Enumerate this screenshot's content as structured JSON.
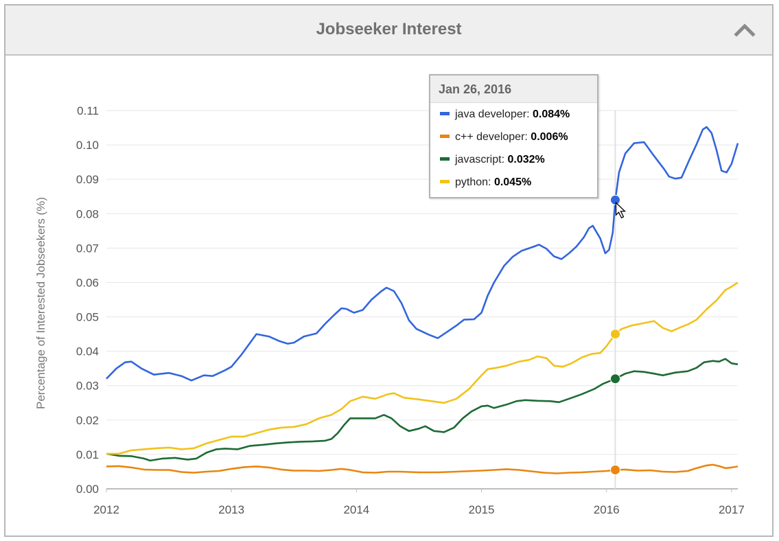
{
  "header": {
    "title": "Jobseeker Interest"
  },
  "tooltip": {
    "date": "Jan 26, 2016",
    "rows": [
      {
        "label": "java developer:",
        "value": "0.084%",
        "color": "#3366dd"
      },
      {
        "label": "c++ developer:",
        "value": "0.006%",
        "color": "#e8860f"
      },
      {
        "label": "javascript:",
        "value": "0.032%",
        "color": "#1d6b35"
      },
      {
        "label": "python:",
        "value": "0.045%",
        "color": "#f1c21b"
      }
    ]
  },
  "chart_data": {
    "type": "line",
    "ylabel": "Percentage of Interested Jobseekers (%)",
    "xlabel": "",
    "ylim": [
      0,
      0.11
    ],
    "xlim": [
      2012,
      2017.05
    ],
    "x_ticks": [
      "2012",
      "2013",
      "2014",
      "2015",
      "2016",
      "2017"
    ],
    "y_ticks": [
      "0.00",
      "0.01",
      "0.02",
      "0.03",
      "0.04",
      "0.05",
      "0.06",
      "0.07",
      "0.08",
      "0.09",
      "0.10",
      "0.11"
    ],
    "grid": true,
    "highlight_x": 2016.07,
    "series": [
      {
        "name": "java developer",
        "color": "#3366dd",
        "points": [
          [
            2012.0,
            0.032
          ],
          [
            2012.08,
            0.035
          ],
          [
            2012.15,
            0.0368
          ],
          [
            2012.2,
            0.037
          ],
          [
            2012.28,
            0.035
          ],
          [
            2012.38,
            0.0332
          ],
          [
            2012.5,
            0.0337
          ],
          [
            2012.6,
            0.0328
          ],
          [
            2012.68,
            0.0315
          ],
          [
            2012.78,
            0.033
          ],
          [
            2012.85,
            0.0328
          ],
          [
            2012.95,
            0.0345
          ],
          [
            2013.0,
            0.0355
          ],
          [
            2013.08,
            0.039
          ],
          [
            2013.15,
            0.0425
          ],
          [
            2013.2,
            0.045
          ],
          [
            2013.3,
            0.0443
          ],
          [
            2013.38,
            0.043
          ],
          [
            2013.45,
            0.0422
          ],
          [
            2013.5,
            0.0425
          ],
          [
            2013.58,
            0.0443
          ],
          [
            2013.68,
            0.0452
          ],
          [
            2013.75,
            0.048
          ],
          [
            2013.82,
            0.0505
          ],
          [
            2013.88,
            0.0525
          ],
          [
            2013.92,
            0.0523
          ],
          [
            2013.98,
            0.0512
          ],
          [
            2014.05,
            0.052
          ],
          [
            2014.12,
            0.055
          ],
          [
            2014.2,
            0.0575
          ],
          [
            2014.24,
            0.0585
          ],
          [
            2014.3,
            0.0575
          ],
          [
            2014.36,
            0.054
          ],
          [
            2014.42,
            0.049
          ],
          [
            2014.48,
            0.0465
          ],
          [
            2014.58,
            0.0448
          ],
          [
            2014.65,
            0.0438
          ],
          [
            2014.72,
            0.0455
          ],
          [
            2014.8,
            0.0475
          ],
          [
            2014.86,
            0.0492
          ],
          [
            2014.94,
            0.0493
          ],
          [
            2015.0,
            0.0512
          ],
          [
            2015.05,
            0.0562
          ],
          [
            2015.1,
            0.06
          ],
          [
            2015.18,
            0.0648
          ],
          [
            2015.25,
            0.0675
          ],
          [
            2015.32,
            0.0692
          ],
          [
            2015.4,
            0.0702
          ],
          [
            2015.46,
            0.071
          ],
          [
            2015.52,
            0.0698
          ],
          [
            2015.58,
            0.0676
          ],
          [
            2015.64,
            0.0668
          ],
          [
            2015.7,
            0.0685
          ],
          [
            2015.76,
            0.0705
          ],
          [
            2015.82,
            0.0732
          ],
          [
            2015.86,
            0.0758
          ],
          [
            2015.89,
            0.0765
          ],
          [
            2015.95,
            0.0728
          ],
          [
            2015.99,
            0.0685
          ],
          [
            2016.02,
            0.0695
          ],
          [
            2016.05,
            0.0745
          ],
          [
            2016.07,
            0.084
          ],
          [
            2016.1,
            0.092
          ],
          [
            2016.15,
            0.0975
          ],
          [
            2016.22,
            0.1005
          ],
          [
            2016.3,
            0.1008
          ],
          [
            2016.38,
            0.0968
          ],
          [
            2016.46,
            0.093
          ],
          [
            2016.5,
            0.0908
          ],
          [
            2016.55,
            0.0902
          ],
          [
            2016.6,
            0.0905
          ],
          [
            2016.66,
            0.0955
          ],
          [
            2016.72,
            0.1002
          ],
          [
            2016.77,
            0.1045
          ],
          [
            2016.8,
            0.1052
          ],
          [
            2016.84,
            0.1035
          ],
          [
            2016.88,
            0.0985
          ],
          [
            2016.92,
            0.0925
          ],
          [
            2016.96,
            0.092
          ],
          [
            2017.0,
            0.0945
          ],
          [
            2017.05,
            0.1005
          ]
        ]
      },
      {
        "name": "c++ developer",
        "color": "#e8860f",
        "points": [
          [
            2012.0,
            0.0065
          ],
          [
            2012.1,
            0.0066
          ],
          [
            2012.2,
            0.0062
          ],
          [
            2012.3,
            0.0056
          ],
          [
            2012.4,
            0.0055
          ],
          [
            2012.5,
            0.0055
          ],
          [
            2012.6,
            0.0049
          ],
          [
            2012.7,
            0.0047
          ],
          [
            2012.8,
            0.005
          ],
          [
            2012.9,
            0.0052
          ],
          [
            2013.0,
            0.0058
          ],
          [
            2013.1,
            0.0063
          ],
          [
            2013.2,
            0.0065
          ],
          [
            2013.3,
            0.0062
          ],
          [
            2013.4,
            0.0056
          ],
          [
            2013.5,
            0.0053
          ],
          [
            2013.6,
            0.0053
          ],
          [
            2013.7,
            0.0052
          ],
          [
            2013.8,
            0.0055
          ],
          [
            2013.88,
            0.0058
          ],
          [
            2013.95,
            0.0055
          ],
          [
            2014.05,
            0.0048
          ],
          [
            2014.15,
            0.0047
          ],
          [
            2014.25,
            0.005
          ],
          [
            2014.35,
            0.005
          ],
          [
            2014.5,
            0.0048
          ],
          [
            2014.65,
            0.0048
          ],
          [
            2014.8,
            0.005
          ],
          [
            2015.0,
            0.0053
          ],
          [
            2015.1,
            0.0055
          ],
          [
            2015.2,
            0.0057
          ],
          [
            2015.3,
            0.0055
          ],
          [
            2015.4,
            0.0051
          ],
          [
            2015.5,
            0.0047
          ],
          [
            2015.6,
            0.0045
          ],
          [
            2015.7,
            0.0047
          ],
          [
            2015.8,
            0.0048
          ],
          [
            2015.9,
            0.005
          ],
          [
            2016.0,
            0.0052
          ],
          [
            2016.07,
            0.0055
          ],
          [
            2016.15,
            0.0056
          ],
          [
            2016.25,
            0.0053
          ],
          [
            2016.35,
            0.0054
          ],
          [
            2016.45,
            0.005
          ],
          [
            2016.55,
            0.0049
          ],
          [
            2016.65,
            0.0052
          ],
          [
            2016.72,
            0.006
          ],
          [
            2016.8,
            0.0068
          ],
          [
            2016.85,
            0.007
          ],
          [
            2016.9,
            0.0066
          ],
          [
            2016.95,
            0.006
          ],
          [
            2017.0,
            0.0062
          ],
          [
            2017.05,
            0.0065
          ]
        ]
      },
      {
        "name": "javascript",
        "color": "#1d6b35",
        "points": [
          [
            2012.0,
            0.0102
          ],
          [
            2012.1,
            0.0096
          ],
          [
            2012.2,
            0.0095
          ],
          [
            2012.3,
            0.0088
          ],
          [
            2012.35,
            0.0082
          ],
          [
            2012.45,
            0.0088
          ],
          [
            2012.55,
            0.009
          ],
          [
            2012.65,
            0.0085
          ],
          [
            2012.72,
            0.0088
          ],
          [
            2012.8,
            0.0105
          ],
          [
            2012.88,
            0.0115
          ],
          [
            2012.95,
            0.0117
          ],
          [
            2013.05,
            0.0115
          ],
          [
            2013.15,
            0.0125
          ],
          [
            2013.25,
            0.0128
          ],
          [
            2013.35,
            0.0132
          ],
          [
            2013.45,
            0.0135
          ],
          [
            2013.55,
            0.0137
          ],
          [
            2013.65,
            0.0138
          ],
          [
            2013.75,
            0.014
          ],
          [
            2013.8,
            0.0145
          ],
          [
            2013.85,
            0.0162
          ],
          [
            2013.9,
            0.0185
          ],
          [
            2013.95,
            0.0205
          ],
          [
            2014.05,
            0.0205
          ],
          [
            2014.15,
            0.0205
          ],
          [
            2014.22,
            0.0215
          ],
          [
            2014.28,
            0.0205
          ],
          [
            2014.35,
            0.0182
          ],
          [
            2014.42,
            0.0168
          ],
          [
            2014.5,
            0.0175
          ],
          [
            2014.55,
            0.0182
          ],
          [
            2014.62,
            0.0168
          ],
          [
            2014.7,
            0.0165
          ],
          [
            2014.78,
            0.0178
          ],
          [
            2014.85,
            0.0205
          ],
          [
            2014.92,
            0.0225
          ],
          [
            2015.0,
            0.024
          ],
          [
            2015.05,
            0.0242
          ],
          [
            2015.1,
            0.0235
          ],
          [
            2015.2,
            0.0245
          ],
          [
            2015.28,
            0.0255
          ],
          [
            2015.35,
            0.0258
          ],
          [
            2015.45,
            0.0256
          ],
          [
            2015.55,
            0.0255
          ],
          [
            2015.62,
            0.0252
          ],
          [
            2015.7,
            0.0262
          ],
          [
            2015.8,
            0.0275
          ],
          [
            2015.9,
            0.029
          ],
          [
            2015.97,
            0.0305
          ],
          [
            2016.07,
            0.032
          ],
          [
            2016.15,
            0.0335
          ],
          [
            2016.22,
            0.0342
          ],
          [
            2016.3,
            0.034
          ],
          [
            2016.38,
            0.0335
          ],
          [
            2016.45,
            0.033
          ],
          [
            2016.55,
            0.0338
          ],
          [
            2016.65,
            0.0342
          ],
          [
            2016.72,
            0.0352
          ],
          [
            2016.78,
            0.0368
          ],
          [
            2016.85,
            0.0372
          ],
          [
            2016.9,
            0.037
          ],
          [
            2016.95,
            0.0378
          ],
          [
            2017.0,
            0.0365
          ],
          [
            2017.05,
            0.0362
          ]
        ]
      },
      {
        "name": "python",
        "color": "#f1c21b",
        "points": [
          [
            2012.0,
            0.0102
          ],
          [
            2012.1,
            0.0102
          ],
          [
            2012.2,
            0.0112
          ],
          [
            2012.3,
            0.0115
          ],
          [
            2012.4,
            0.0118
          ],
          [
            2012.5,
            0.012
          ],
          [
            2012.6,
            0.0115
          ],
          [
            2012.7,
            0.0118
          ],
          [
            2012.8,
            0.0132
          ],
          [
            2012.9,
            0.0142
          ],
          [
            2013.0,
            0.0152
          ],
          [
            2013.1,
            0.0152
          ],
          [
            2013.2,
            0.0162
          ],
          [
            2013.3,
            0.0172
          ],
          [
            2013.4,
            0.0178
          ],
          [
            2013.5,
            0.018
          ],
          [
            2013.6,
            0.0188
          ],
          [
            2013.7,
            0.0205
          ],
          [
            2013.8,
            0.0215
          ],
          [
            2013.88,
            0.0232
          ],
          [
            2013.95,
            0.0255
          ],
          [
            2014.05,
            0.0268
          ],
          [
            2014.15,
            0.0262
          ],
          [
            2014.25,
            0.0275
          ],
          [
            2014.3,
            0.0278
          ],
          [
            2014.38,
            0.0265
          ],
          [
            2014.5,
            0.026
          ],
          [
            2014.6,
            0.0255
          ],
          [
            2014.7,
            0.025
          ],
          [
            2014.8,
            0.0262
          ],
          [
            2014.9,
            0.029
          ],
          [
            2015.0,
            0.033
          ],
          [
            2015.05,
            0.0348
          ],
          [
            2015.12,
            0.0352
          ],
          [
            2015.2,
            0.0358
          ],
          [
            2015.3,
            0.037
          ],
          [
            2015.38,
            0.0375
          ],
          [
            2015.45,
            0.0385
          ],
          [
            2015.52,
            0.038
          ],
          [
            2015.58,
            0.0358
          ],
          [
            2015.65,
            0.0355
          ],
          [
            2015.72,
            0.0365
          ],
          [
            2015.8,
            0.0382
          ],
          [
            2015.88,
            0.0392
          ],
          [
            2015.95,
            0.0395
          ],
          [
            2016.0,
            0.0415
          ],
          [
            2016.07,
            0.045
          ],
          [
            2016.12,
            0.0465
          ],
          [
            2016.2,
            0.0475
          ],
          [
            2016.3,
            0.0482
          ],
          [
            2016.38,
            0.0488
          ],
          [
            2016.45,
            0.0468
          ],
          [
            2016.52,
            0.0458
          ],
          [
            2016.58,
            0.0468
          ],
          [
            2016.65,
            0.0478
          ],
          [
            2016.72,
            0.0492
          ],
          [
            2016.8,
            0.0522
          ],
          [
            2016.88,
            0.0548
          ],
          [
            2016.95,
            0.0578
          ],
          [
            2017.0,
            0.0588
          ],
          [
            2017.05,
            0.06
          ]
        ]
      }
    ]
  }
}
